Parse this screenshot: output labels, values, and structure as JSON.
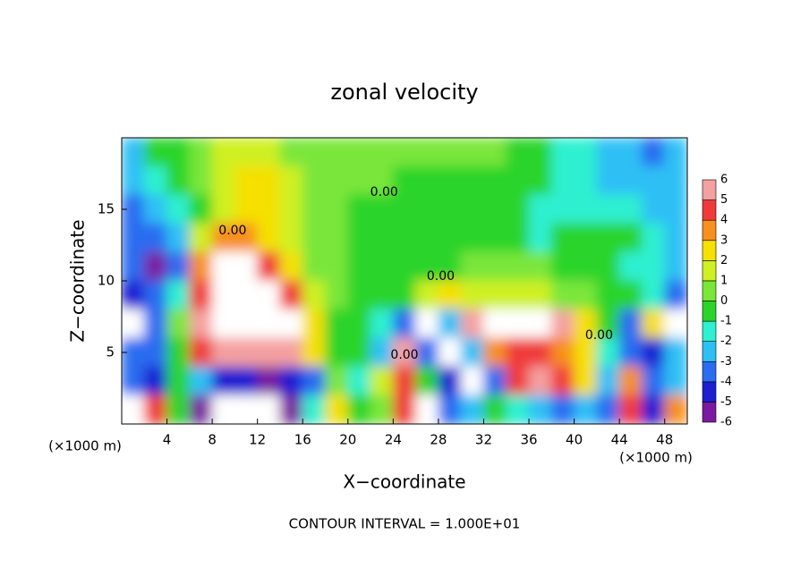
{
  "chart_data": {
    "type": "heatmap",
    "title": "zonal velocity",
    "x_label": "X−coordinate",
    "y_label": "Z−coordinate",
    "x_unit_label": "(×1000 m)",
    "footer": "CONTOUR INTERVAL = 1.000E+01",
    "xlim": [
      0,
      50
    ],
    "ylim": [
      0,
      20
    ],
    "xticks": [
      4,
      8,
      12,
      16,
      20,
      24,
      28,
      32,
      36,
      40,
      44,
      48
    ],
    "yticks": [
      5,
      10,
      15
    ],
    "x": [
      1,
      3,
      5,
      7,
      9,
      11,
      13,
      15,
      17,
      19,
      21,
      23,
      25,
      27,
      29,
      31,
      33,
      35,
      37,
      39,
      41,
      43,
      45,
      47,
      49
    ],
    "y": [
      19,
      17,
      15,
      13,
      11,
      9,
      7,
      5,
      3,
      1
    ],
    "z": [
      [
        -2,
        0,
        0,
        1,
        2,
        2,
        2,
        1,
        1,
        0.5,
        0.5,
        0.5,
        0.5,
        0.5,
        0.5,
        0.5,
        0.5,
        0,
        0,
        -1,
        -1.5,
        -2,
        -2.5,
        -3,
        -2
      ],
      [
        -2,
        -1,
        0,
        1,
        2,
        3,
        3,
        2,
        1,
        1,
        0.5,
        0.5,
        0,
        0,
        0,
        0,
        0,
        0,
        0,
        -1,
        -1.5,
        -2,
        -2,
        -2.5,
        -2
      ],
      [
        -3,
        -2,
        -1,
        0,
        2,
        3,
        3,
        2,
        1,
        1,
        0,
        -0.5,
        0,
        0,
        0,
        0,
        0,
        -0.5,
        -1,
        -1,
        -1,
        -1.5,
        -1,
        -2,
        -2
      ],
      [
        -3,
        -3.5,
        -2,
        2,
        4,
        4,
        3,
        2,
        1,
        1,
        0,
        -0.5,
        0,
        0,
        0,
        -0.5,
        0,
        0,
        -1,
        -0.5,
        -0.5,
        0,
        -0.5,
        -1,
        -2
      ],
      [
        -3,
        -5,
        -3,
        4,
        7,
        7,
        5,
        3,
        1,
        0.5,
        0,
        0,
        0,
        0,
        0,
        1,
        1,
        0.5,
        0.5,
        0,
        0,
        0,
        -1,
        -1,
        -2
      ],
      [
        -4,
        -3,
        -1,
        5,
        8,
        8,
        7,
        5,
        2,
        0.5,
        0,
        0,
        0,
        2,
        3,
        2,
        2,
        2,
        1.5,
        1,
        0.5,
        0,
        -0.5,
        -1,
        -3
      ],
      [
        8,
        -3,
        1,
        6,
        8,
        8,
        8,
        8,
        3,
        0,
        0,
        -1,
        -3,
        8,
        -2,
        6,
        8,
        8,
        8,
        6,
        3,
        0,
        -3,
        3,
        8
      ],
      [
        -3,
        -3,
        0,
        5,
        6,
        6,
        6,
        6,
        3,
        0,
        0,
        -2,
        6,
        -3,
        8,
        -2,
        4,
        5,
        5,
        4,
        3,
        -1,
        -3,
        -4,
        -2
      ],
      [
        -3,
        -4,
        0,
        -2,
        -4,
        -4,
        -5,
        -4,
        -3,
        1,
        -1,
        2,
        5,
        0,
        -4,
        8,
        -3,
        5,
        6,
        5,
        3,
        -2,
        4,
        -3,
        -2
      ],
      [
        8,
        5,
        0,
        -5,
        8,
        8,
        8,
        -5,
        -1,
        3,
        0,
        1,
        5,
        8,
        -3,
        -2,
        0,
        -1,
        -2,
        -3,
        -2,
        -3,
        5,
        -4,
        4
      ]
    ],
    "colorbar": {
      "levels": [
        -6,
        -5,
        -4,
        -3,
        -2,
        -1,
        0,
        1,
        2,
        3,
        4,
        5,
        6
      ],
      "colors": [
        "#7a1aa0",
        "#1e1ed2",
        "#2c6cf0",
        "#2ec0f5",
        "#2ff0d0",
        "#2bd42b",
        "#7ae63a",
        "#cff023",
        "#f5e000",
        "#f7901e",
        "#f03a3a",
        "#f4a0a0"
      ],
      "over_color": "#ffffff"
    },
    "contour_labels": [
      {
        "text": "0.00",
        "x": 9.8,
        "y": 13.5
      },
      {
        "text": "0.00",
        "x": 23.2,
        "y": 16.2
      },
      {
        "text": "0.00",
        "x": 28.2,
        "y": 10.3
      },
      {
        "text": "0.00",
        "x": 25.0,
        "y": 4.8
      },
      {
        "text": "0.00",
        "x": 42.2,
        "y": 6.2
      }
    ]
  }
}
